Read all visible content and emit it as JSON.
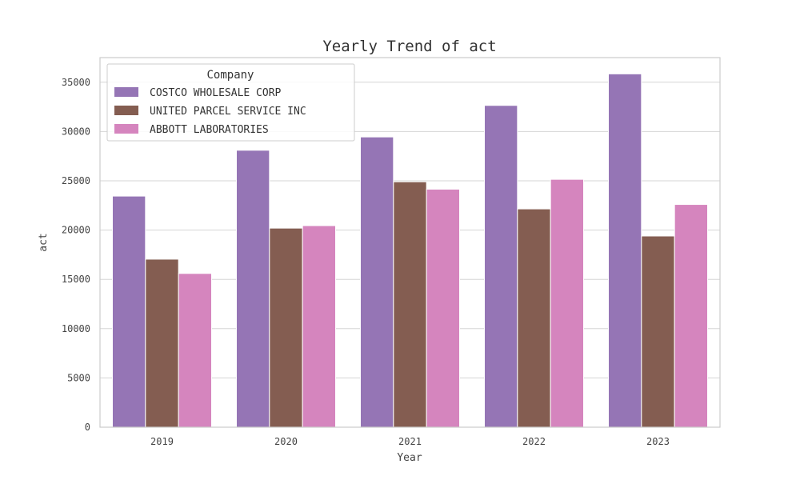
{
  "chart_data": {
    "type": "bar",
    "title": "Yearly Trend of act",
    "xlabel": "Year",
    "ylabel": "act",
    "categories": [
      "2019",
      "2020",
      "2021",
      "2022",
      "2023"
    ],
    "series": [
      {
        "name": "COSTCO WHOLESALE CORP",
        "color": "#9575b5",
        "values": [
          23450,
          28100,
          29450,
          32650,
          35850
        ]
      },
      {
        "name": "UNITED PARCEL SERVICE INC",
        "color": "#845d51",
        "values": [
          17050,
          20200,
          24900,
          22150,
          19400
        ]
      },
      {
        "name": "ABBOTT LABORATORIES",
        "color": "#d585be",
        "values": [
          15600,
          20450,
          24150,
          25150,
          22600
        ]
      }
    ],
    "ylim": [
      0,
      37500
    ],
    "yticks": [
      0,
      5000,
      10000,
      15000,
      20000,
      25000,
      30000,
      35000
    ],
    "grid": "horizontal",
    "legend": {
      "title": "Company",
      "placement": "upper-left"
    }
  }
}
